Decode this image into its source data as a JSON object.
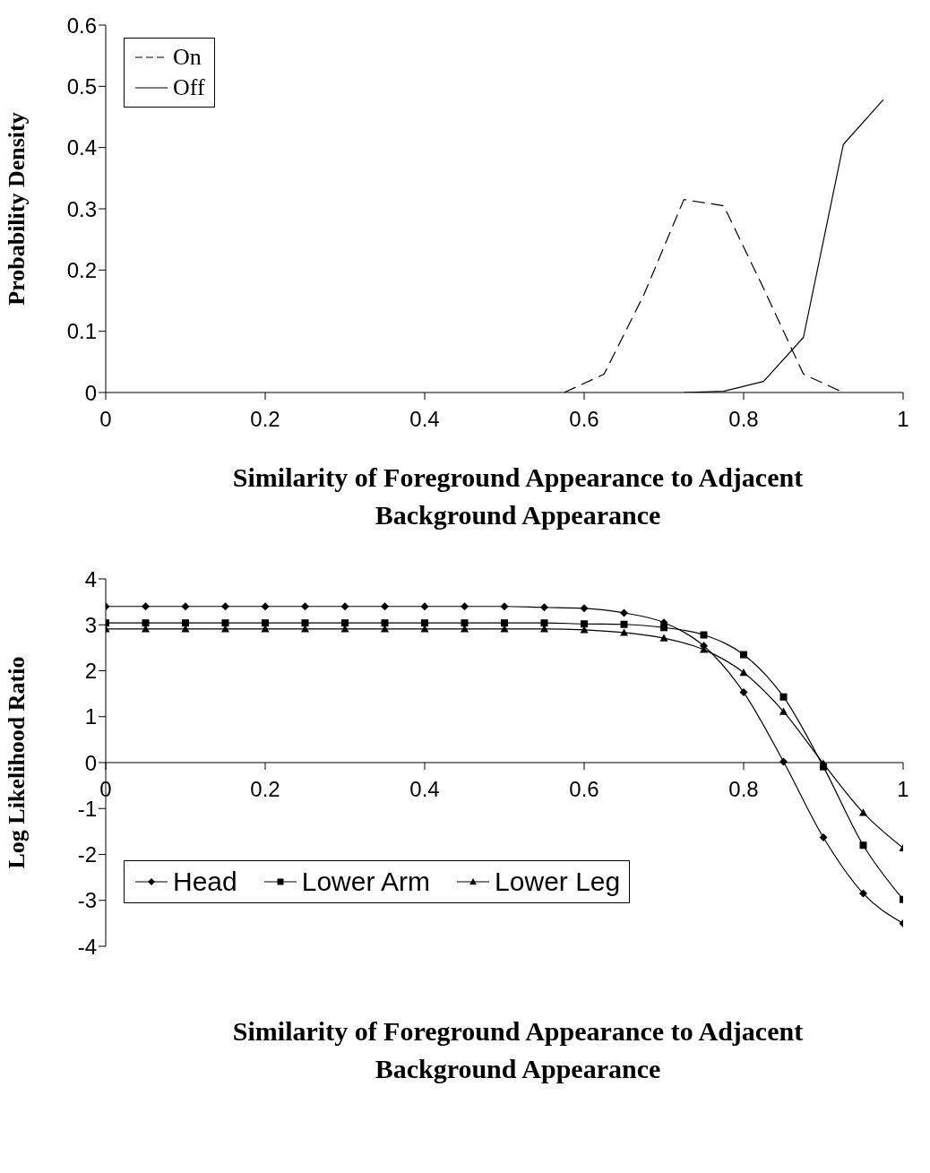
{
  "chart_data": [
    {
      "type": "line",
      "xlabel": "Similarity of Foreground Appearance to Adjacent Background Appearance",
      "ylabel": "Probability Density",
      "x": [
        0.575,
        0.625,
        0.675,
        0.725,
        0.775,
        0.825,
        0.875,
        0.925,
        0.975
      ],
      "xlim": [
        0,
        1
      ],
      "xticks": [
        0,
        0.2,
        0.4,
        0.6,
        0.8,
        1
      ],
      "ylim": [
        0,
        0.6
      ],
      "yticks": [
        0,
        0.1,
        0.2,
        0.3,
        0.4,
        0.5,
        0.6
      ],
      "grid": false,
      "legend": "top left",
      "marker": "none",
      "series": [
        {
          "name": "On",
          "color": "#000000",
          "line_style": "dashed",
          "values": [
            0,
            0.03,
            0.16,
            0.315,
            0.305,
            0.17,
            0.03,
            0,
            null
          ]
        },
        {
          "name": "Off",
          "color": "#000000",
          "line_style": "solid",
          "values": [
            null,
            null,
            null,
            0,
            0.002,
            0.018,
            0.09,
            0.405,
            0.478
          ]
        }
      ]
    },
    {
      "type": "line",
      "xlabel": "Similarity of Foreground Appearance to Adjacent Background Appearance",
      "ylabel": "Log Likelihood Ratio",
      "x": [
        0,
        0.05,
        0.1,
        0.15,
        0.2,
        0.25,
        0.3,
        0.35,
        0.4,
        0.45,
        0.5,
        0.55,
        0.6,
        0.65,
        0.7,
        0.75,
        0.8,
        0.85,
        0.9,
        0.95,
        1
      ],
      "xlim": [
        0,
        1
      ],
      "xticks": [
        0,
        0.2,
        0.4,
        0.6,
        0.8,
        1
      ],
      "ylim": [
        -4,
        4
      ],
      "yticks": [
        -4,
        -3,
        -2,
        -1,
        0,
        1,
        2,
        3,
        4
      ],
      "grid": false,
      "legend": "bottom left",
      "line_style": "solid",
      "series": [
        {
          "name": "Head",
          "color": "#000000",
          "marker": "diamond",
          "values": [
            3.4,
            3.4,
            3.4,
            3.4,
            3.4,
            3.4,
            3.4,
            3.4,
            3.4,
            3.4,
            3.4,
            3.38,
            3.36,
            3.26,
            3.05,
            2.54,
            1.53,
            0.02,
            -1.63,
            -2.85,
            -3.5
          ]
        },
        {
          "name": "Lower Arm",
          "color": "#000000",
          "marker": "square",
          "values": [
            3.04,
            3.04,
            3.04,
            3.04,
            3.04,
            3.04,
            3.04,
            3.04,
            3.04,
            3.04,
            3.04,
            3.04,
            3.02,
            3.01,
            2.94,
            2.78,
            2.35,
            1.43,
            -0.09,
            -1.8,
            -2.98
          ]
        },
        {
          "name": "Lower Leg",
          "color": "#000000",
          "marker": "triangle",
          "values": [
            2.91,
            2.91,
            2.91,
            2.91,
            2.91,
            2.91,
            2.91,
            2.91,
            2.91,
            2.91,
            2.91,
            2.91,
            2.89,
            2.83,
            2.71,
            2.46,
            1.96,
            1.11,
            -0.02,
            -1.09,
            -1.86
          ]
        }
      ]
    }
  ]
}
